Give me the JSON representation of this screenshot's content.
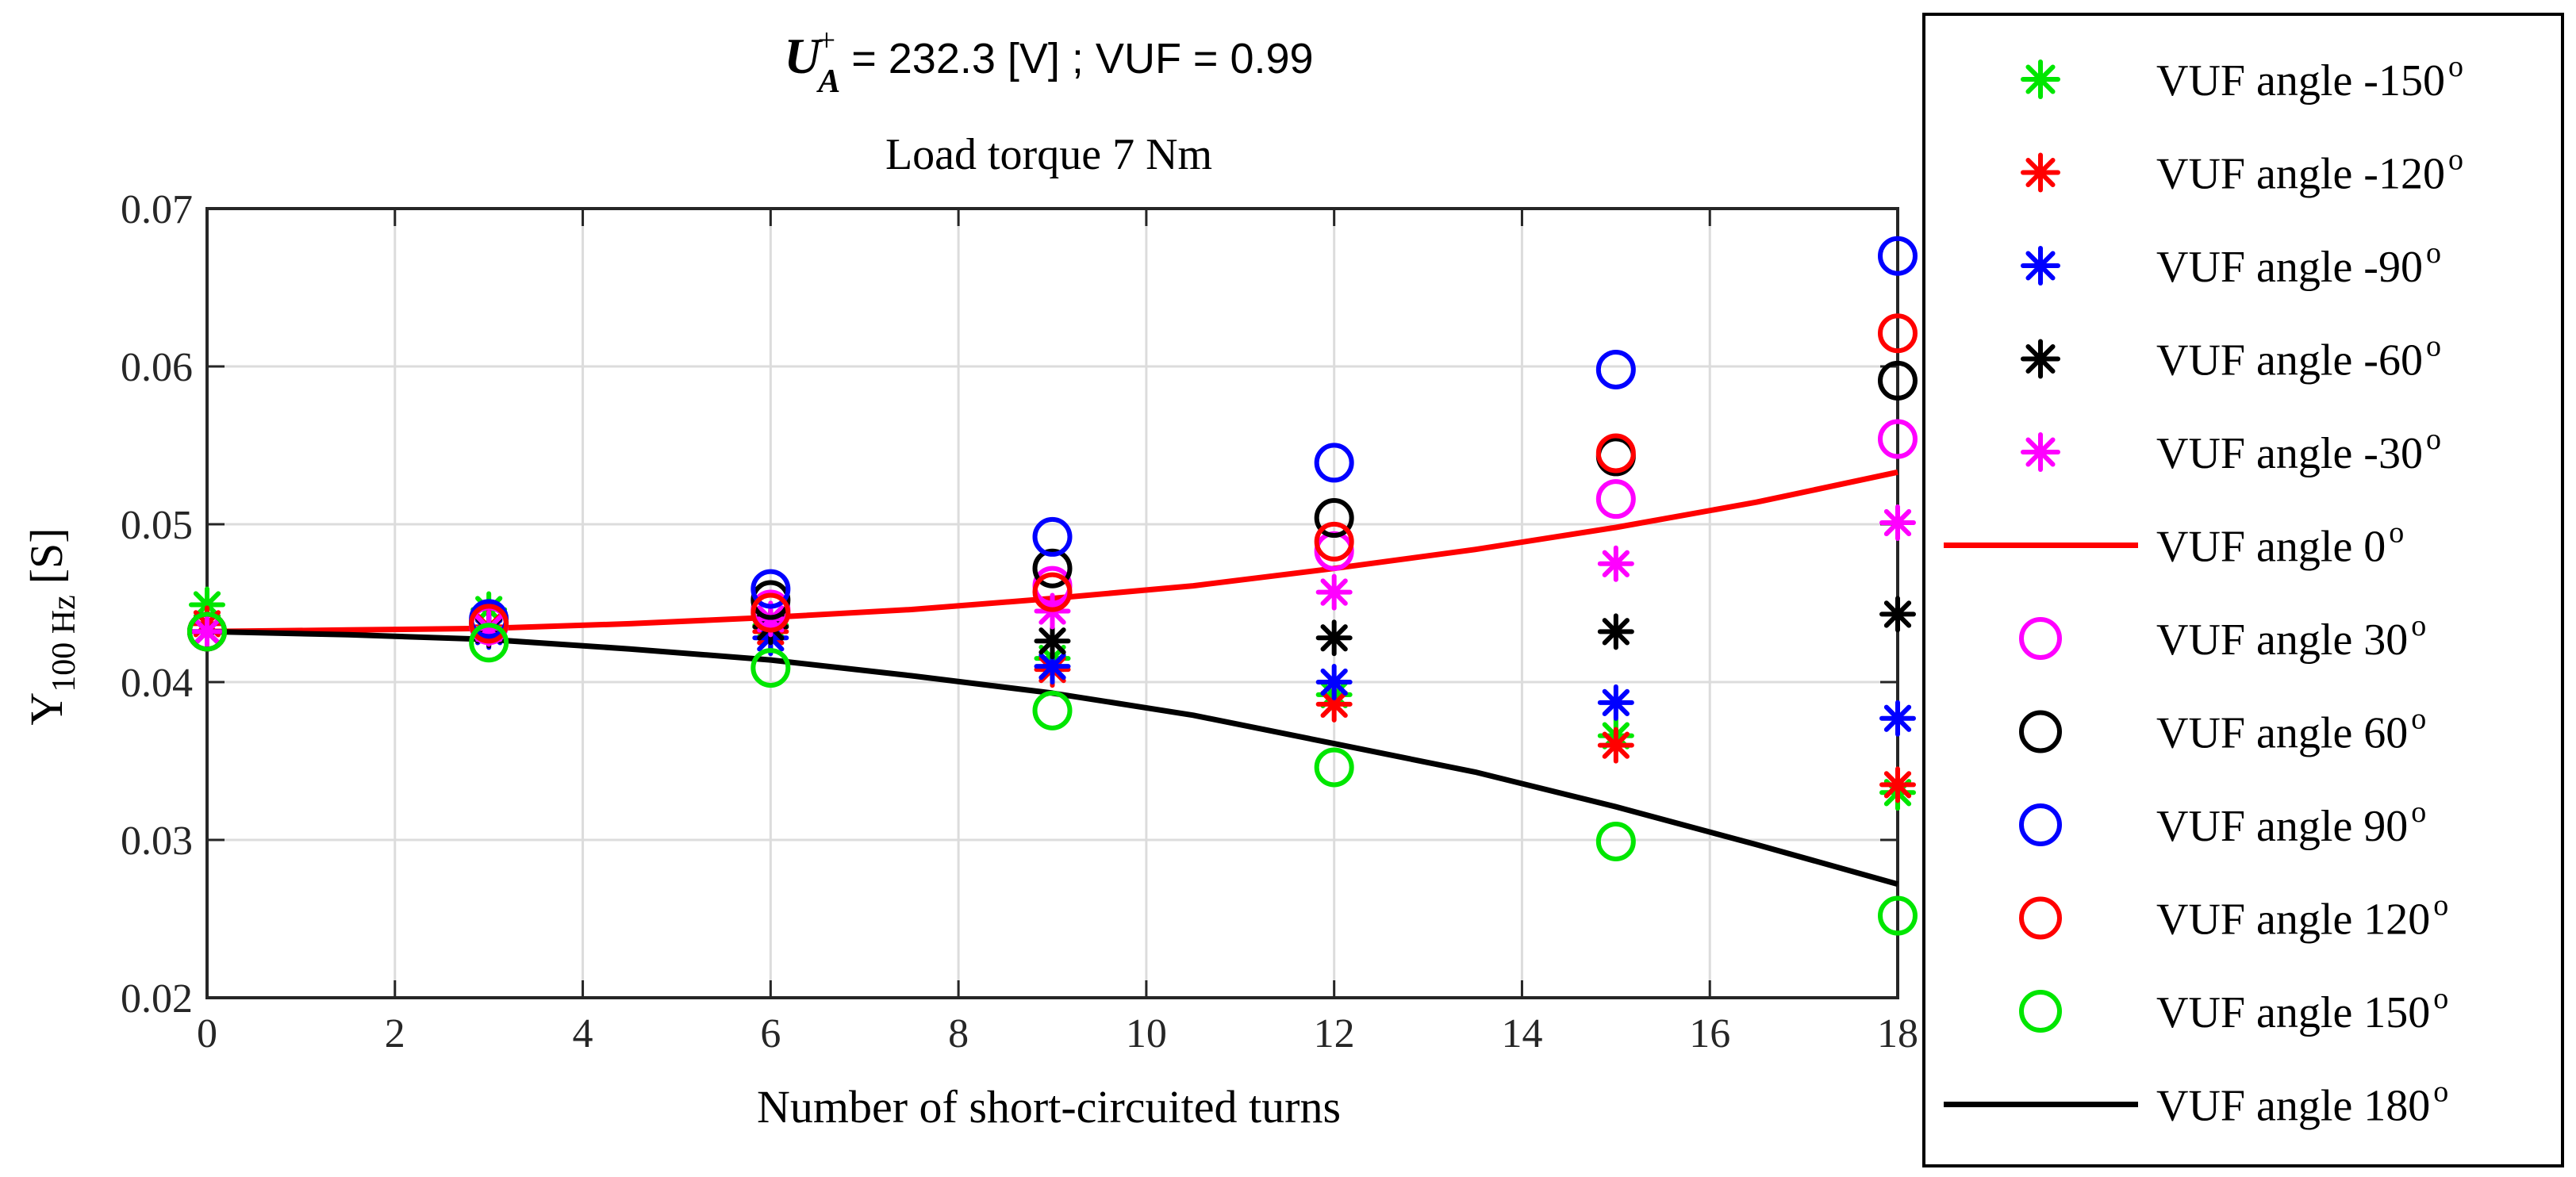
{
  "chart_data": {
    "type": "scatter",
    "title_line1": {
      "symbol": "U",
      "superscript": "+",
      "subscript": "A",
      "value_text": "= 232.3 [V] ;  VUF = 0.99"
    },
    "title_line2": "Load torque 7 Nm",
    "xlabel": "Number of short-circuited turns",
    "ylabel": {
      "main": "Y",
      "subscript": "100 Hz",
      "unit": "[S]"
    },
    "xlim": [
      0,
      18
    ],
    "ylim": [
      0.02,
      0.07
    ],
    "x_ticks": [
      0,
      2,
      4,
      6,
      8,
      10,
      12,
      14,
      16,
      18
    ],
    "x_tick_labels": [
      "0",
      "2",
      "4",
      "6",
      "8",
      "10",
      "12",
      "14",
      "16",
      "18"
    ],
    "y_ticks": [
      0.02,
      0.03,
      0.04,
      0.05,
      0.06,
      0.07
    ],
    "y_tick_labels": [
      "0.02",
      "0.03",
      "0.04",
      "0.05",
      "0.06",
      "0.07"
    ],
    "grid": true,
    "legend_position": "outside-right",
    "x": [
      0,
      3,
      6,
      9,
      12,
      15,
      18
    ],
    "series": [
      {
        "name": "VUF angle -150",
        "marker": "asterisk",
        "color": "#00e600",
        "values": [
          0.0449,
          0.0446,
          0.0436,
          0.0415,
          0.0392,
          0.0366,
          0.033
        ]
      },
      {
        "name": "VUF angle -120",
        "marker": "asterisk",
        "color": "#ff0000",
        "values": [
          0.0437,
          0.0435,
          0.0432,
          0.0408,
          0.0386,
          0.036,
          0.0335
        ]
      },
      {
        "name": "VUF angle -90",
        "marker": "asterisk",
        "color": "#0000ff",
        "values": [
          0.0432,
          0.0432,
          0.0428,
          0.041,
          0.04,
          0.0387,
          0.0377
        ]
      },
      {
        "name": "VUF angle -60",
        "marker": "asterisk",
        "color": "#000000",
        "values": [
          0.0432,
          0.0433,
          0.0435,
          0.0426,
          0.0428,
          0.0432,
          0.0443
        ]
      },
      {
        "name": "VUF angle -30",
        "marker": "asterisk",
        "color": "#ff00ff",
        "values": [
          0.0432,
          0.0434,
          0.044,
          0.0445,
          0.0457,
          0.0475,
          0.0501
        ]
      },
      {
        "name": "VUF angle 0",
        "marker": "line",
        "color": "#ff0000",
        "x": [
          0,
          1.5,
          3,
          4.5,
          6,
          7.5,
          9,
          10.5,
          12,
          13.5,
          15,
          16.5,
          18
        ],
        "values": [
          0.0432,
          0.0433,
          0.0434,
          0.0437,
          0.0441,
          0.0446,
          0.0453,
          0.0461,
          0.0472,
          0.0484,
          0.0498,
          0.0514,
          0.0533
        ]
      },
      {
        "name": "VUF angle 30",
        "marker": "circle",
        "color": "#ff00ff",
        "values": [
          0.0432,
          0.0436,
          0.0446,
          0.0461,
          0.0483,
          0.0516,
          0.0554
        ]
      },
      {
        "name": "VUF angle 60",
        "marker": "circle",
        "color": "#000000",
        "values": [
          0.0432,
          0.0438,
          0.0452,
          0.0472,
          0.0504,
          0.0543,
          0.0591
        ]
      },
      {
        "name": "VUF angle 90",
        "marker": "circle",
        "color": "#0000ff",
        "values": [
          0.0432,
          0.044,
          0.0459,
          0.0492,
          0.0539,
          0.0598,
          0.067
        ]
      },
      {
        "name": "VUF angle 120",
        "marker": "circle",
        "color": "#ff0000",
        "values": [
          0.0432,
          0.0437,
          0.0444,
          0.0457,
          0.0489,
          0.0545,
          0.0621
        ]
      },
      {
        "name": "VUF angle 150",
        "marker": "circle",
        "color": "#00e600",
        "values": [
          0.0432,
          0.0425,
          0.0409,
          0.0382,
          0.0346,
          0.0299,
          0.0252
        ]
      },
      {
        "name": "VUF angle 180",
        "marker": "line",
        "color": "#000000",
        "x": [
          0,
          1.5,
          3,
          4.5,
          6,
          7.5,
          9,
          10.5,
          12,
          13.5,
          15,
          16.5,
          18
        ],
        "values": [
          0.0432,
          0.043,
          0.0427,
          0.0421,
          0.0414,
          0.0404,
          0.0393,
          0.0379,
          0.0361,
          0.0343,
          0.0321,
          0.0297,
          0.0272
        ]
      }
    ],
    "legend_entries": [
      {
        "prefix": "VUF angle -150",
        "degree": "o",
        "marker": "asterisk",
        "color": "#00e600"
      },
      {
        "prefix": "VUF angle -120",
        "degree": "o",
        "marker": "asterisk",
        "color": "#ff0000"
      },
      {
        "prefix": "VUF angle -90",
        "degree": "o",
        "marker": "asterisk",
        "color": "#0000ff"
      },
      {
        "prefix": "VUF angle -60",
        "degree": "o",
        "marker": "asterisk",
        "color": "#000000"
      },
      {
        "prefix": "VUF angle -30",
        "degree": "o",
        "marker": "asterisk",
        "color": "#ff00ff"
      },
      {
        "prefix": "VUF angle 0",
        "degree": "o",
        "marker": "line",
        "color": "#ff0000"
      },
      {
        "prefix": "VUF angle 30",
        "degree": "o",
        "marker": "circle",
        "color": "#ff00ff"
      },
      {
        "prefix": "VUF angle 60",
        "degree": "o",
        "marker": "circle",
        "color": "#000000"
      },
      {
        "prefix": "VUF angle 90",
        "degree": "o",
        "marker": "circle",
        "color": "#0000ff"
      },
      {
        "prefix": "VUF angle 120",
        "degree": "o",
        "marker": "circle",
        "color": "#ff0000"
      },
      {
        "prefix": "VUF angle 150",
        "degree": "o",
        "marker": "circle",
        "color": "#00e600"
      },
      {
        "prefix": "VUF angle 180",
        "degree": "o",
        "marker": "line",
        "color": "#000000"
      }
    ]
  }
}
